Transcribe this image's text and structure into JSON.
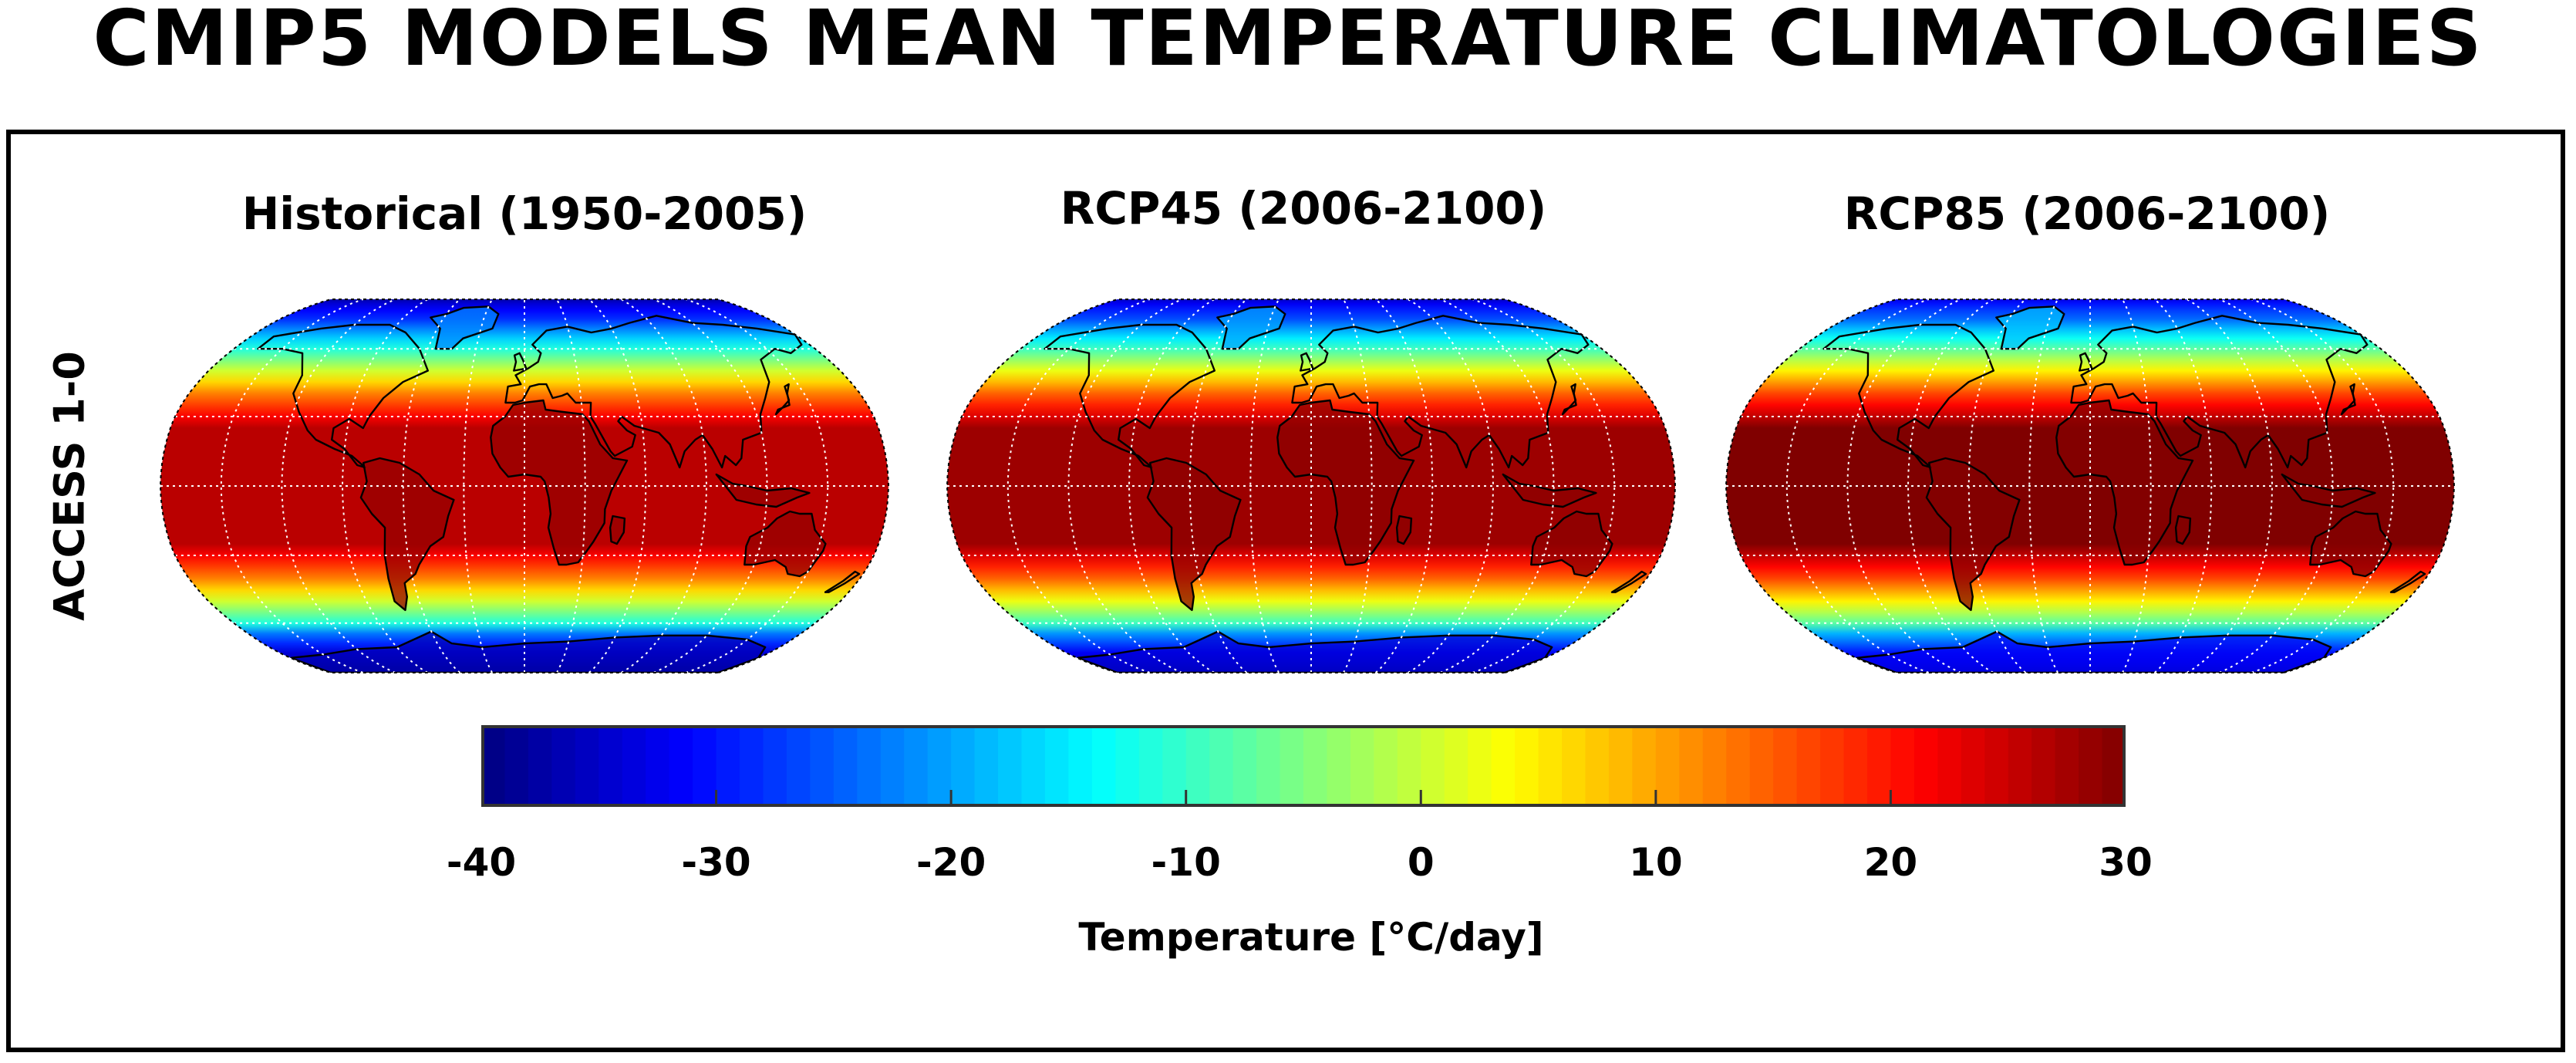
{
  "title": "CMIP5 MODELS MEAN TEMPERATURE CLIMATOLOGIES",
  "row_label": "ACCESS 1-0",
  "panels": [
    {
      "title": "Historical (1950-2005)"
    },
    {
      "title": "RCP45 (2006-2100)"
    },
    {
      "title": "RCP85 (2006-2100)"
    }
  ],
  "colorbar": {
    "label": "Temperature [°C/day]",
    "min": -40,
    "max": 30,
    "ticks": [
      "-40",
      "-30",
      "-20",
      "-10",
      "0",
      "10",
      "20",
      "30"
    ],
    "colormap": "jet",
    "steps": 70
  },
  "map": {
    "projection": "robinson",
    "gridlines": "dotted-white"
  }
}
